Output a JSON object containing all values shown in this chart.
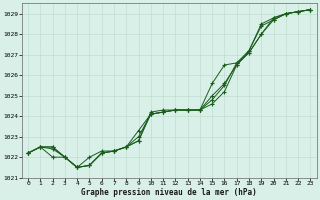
{
  "bg_color": "#d8f0e8",
  "grid_color": "#c0ddd0",
  "line_color": "#1a5c1a",
  "xlabel": "Graphe pression niveau de la mer (hPa)",
  "xlim": [
    -0.5,
    23.5
  ],
  "ylim": [
    1021.0,
    1029.5
  ],
  "yticks": [
    1021,
    1022,
    1023,
    1024,
    1025,
    1026,
    1027,
    1028,
    1029
  ],
  "xticks": [
    0,
    1,
    2,
    3,
    4,
    5,
    6,
    7,
    8,
    9,
    10,
    11,
    12,
    13,
    14,
    15,
    16,
    17,
    18,
    19,
    20,
    21,
    22,
    23
  ],
  "line1_x": [
    0,
    1,
    2,
    3,
    4,
    5,
    6,
    7,
    8,
    9,
    10,
    11,
    12,
    13,
    14,
    15,
    16,
    17,
    18,
    19,
    20,
    21,
    22,
    23
  ],
  "line1_y": [
    1022.2,
    1022.5,
    1022.5,
    1022.0,
    1021.5,
    1021.6,
    1022.2,
    1022.3,
    1022.5,
    1022.8,
    1024.2,
    1024.3,
    1024.3,
    1024.3,
    1024.3,
    1024.6,
    1025.2,
    1026.5,
    1027.2,
    1028.5,
    1028.8,
    1029.0,
    1029.1,
    1029.2
  ],
  "line2_x": [
    0,
    1,
    2,
    3,
    4,
    5,
    6,
    7,
    8,
    9,
    10,
    11,
    12,
    13,
    14,
    15,
    16,
    17,
    18,
    19,
    20,
    21,
    22,
    23
  ],
  "line2_y": [
    1022.2,
    1022.5,
    1022.4,
    1022.0,
    1021.5,
    1021.6,
    1022.2,
    1022.3,
    1022.5,
    1023.3,
    1024.1,
    1024.2,
    1024.3,
    1024.3,
    1024.3,
    1025.0,
    1025.6,
    1026.5,
    1027.1,
    1028.0,
    1028.7,
    1029.0,
    1029.1,
    1029.2
  ],
  "line3_x": [
    0,
    1,
    2,
    3,
    4,
    5,
    6,
    7,
    8,
    9,
    10,
    11,
    12,
    13,
    14,
    15,
    16,
    17,
    18,
    19,
    20,
    21,
    22,
    23
  ],
  "line3_y": [
    1022.2,
    1022.5,
    1022.5,
    1022.0,
    1021.5,
    1021.6,
    1022.2,
    1022.3,
    1022.5,
    1022.8,
    1024.1,
    1024.2,
    1024.3,
    1024.3,
    1024.3,
    1024.8,
    1025.5,
    1026.6,
    1027.2,
    1028.4,
    1028.7,
    1029.0,
    1029.1,
    1029.2
  ],
  "line4_x": [
    0,
    1,
    2,
    3,
    4,
    5,
    6,
    7,
    8,
    9,
    10,
    11,
    12,
    13,
    14,
    15,
    16,
    17,
    18,
    19,
    20,
    21,
    22,
    23
  ],
  "line4_y": [
    1022.2,
    1022.5,
    1022.0,
    1022.0,
    1021.5,
    1022.0,
    1022.3,
    1022.3,
    1022.5,
    1023.0,
    1024.1,
    1024.2,
    1024.3,
    1024.3,
    1024.3,
    1025.6,
    1026.5,
    1026.6,
    1027.1,
    1028.0,
    1028.8,
    1029.0,
    1029.1,
    1029.2
  ]
}
